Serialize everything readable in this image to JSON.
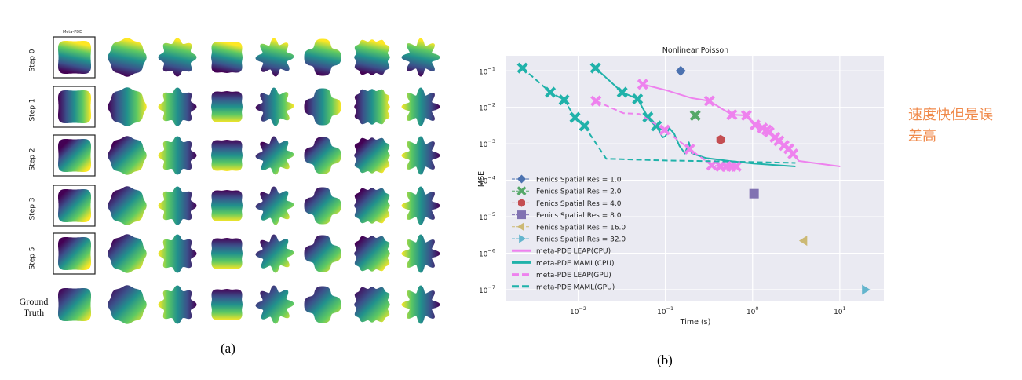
{
  "panel_a": {
    "caption": "(a)",
    "column_title": "Meta-PDE",
    "row_labels": [
      "Step 0",
      "Step 1",
      "Step 2",
      "Step 3",
      "Step 5"
    ],
    "ground_truth_label_line1": "Ground",
    "ground_truth_label_line2": "Truth",
    "colormap": "viridis",
    "shapes": [
      "rounded-square",
      "octagon-blob",
      "wavy-8",
      "four-lobe-diamond",
      "wavy-flower",
      "x-cross",
      "wavy-square",
      "star-8"
    ]
  },
  "panel_b": {
    "caption": "(b)"
  },
  "annotation": {
    "line1": "速度快但是误",
    "line2": "差高",
    "color": "#f08a4b"
  },
  "chart_data": {
    "type": "scatter",
    "title": "Nonlinear Poisson",
    "xlabel": "Time (s)",
    "ylabel": "MSE",
    "xscale": "log",
    "yscale": "log",
    "xlim": [
      0.0015,
      32
    ],
    "ylim": [
      5e-08,
      0.26
    ],
    "xticks": [
      {
        "value": 0.01,
        "base": "10",
        "exp": "−2"
      },
      {
        "value": 0.1,
        "base": "10",
        "exp": "−1"
      },
      {
        "value": 1,
        "base": "10",
        "exp": "0"
      },
      {
        "value": 10,
        "base": "10",
        "exp": "1"
      }
    ],
    "yticks": [
      {
        "value": 0.1,
        "base": "10",
        "exp": "−1"
      },
      {
        "value": 0.01,
        "base": "10",
        "exp": "−2"
      },
      {
        "value": 0.001,
        "base": "10",
        "exp": "−3"
      },
      {
        "value": 0.0001,
        "base": "10",
        "exp": "−4"
      },
      {
        "value": 1e-05,
        "base": "10",
        "exp": "−5"
      },
      {
        "value": 1e-06,
        "base": "10",
        "exp": "−6"
      },
      {
        "value": 1e-07,
        "base": "10",
        "exp": "−7"
      }
    ],
    "grid": true,
    "background": "#eaeaf2",
    "legend_position": "lower-left",
    "points": [
      {
        "name": "Fenics Spatial Res = 1.0",
        "marker": "diamond",
        "color": "#4c72b0",
        "x": 0.15,
        "y": 0.1
      },
      {
        "name": "Fenics Spatial Res = 2.0",
        "marker": "x",
        "color": "#55a868",
        "x": 0.22,
        "y": 0.006
      },
      {
        "name": "Fenics Spatial Res = 4.0",
        "marker": "hexagon",
        "color": "#c44e52",
        "x": 0.43,
        "y": 0.0013
      },
      {
        "name": "Fenics Spatial Res = 8.0",
        "marker": "square",
        "color": "#8172b2",
        "x": 1.04,
        "y": 4.3e-05
      },
      {
        "name": "Fenics Spatial Res = 16.0",
        "marker": "triangle-left",
        "color": "#ccb974",
        "x": 3.9,
        "y": 2.2e-06
      },
      {
        "name": "Fenics Spatial Res = 32.0",
        "marker": "triangle-right",
        "color": "#64b5cd",
        "x": 19.5,
        "y": 1e-07
      }
    ],
    "series": [
      {
        "name": "meta-PDE LEAP(CPU)",
        "color": "#ee82ee",
        "style": "solid",
        "line": [
          [
            0.055,
            0.043
          ],
          [
            0.1,
            0.03
          ],
          [
            0.2,
            0.018
          ],
          [
            0.32,
            0.015
          ],
          [
            0.45,
            0.009
          ],
          [
            0.58,
            0.0063
          ],
          [
            0.85,
            0.006
          ],
          [
            1.07,
            0.0033
          ],
          [
            1.3,
            0.0027
          ],
          [
            1.55,
            0.0021
          ],
          [
            1.8,
            0.0015
          ],
          [
            2.0,
            0.0012
          ],
          [
            2.3,
            0.0009
          ],
          [
            2.6,
            0.00073
          ],
          [
            2.9,
            0.00053
          ],
          [
            3.4,
            0.00034
          ],
          [
            5.0,
            0.0003
          ],
          [
            10.1,
            0.00024
          ]
        ],
        "markers": [
          [
            0.055,
            0.043
          ],
          [
            0.32,
            0.015
          ],
          [
            0.58,
            0.0063
          ],
          [
            0.85,
            0.006
          ],
          [
            1.07,
            0.0033
          ],
          [
            1.3,
            0.0027
          ],
          [
            1.45,
            0.0024
          ],
          [
            1.55,
            0.0021
          ],
          [
            1.8,
            0.0015
          ],
          [
            2.0,
            0.0012
          ],
          [
            2.3,
            0.0009
          ],
          [
            2.6,
            0.00073
          ],
          [
            2.9,
            0.00053
          ]
        ]
      },
      {
        "name": "meta-PDE MAML(CPU)",
        "color": "#20b2aa",
        "style": "solid",
        "line": [
          [
            0.0158,
            0.12
          ],
          [
            0.032,
            0.026
          ],
          [
            0.048,
            0.017
          ],
          [
            0.063,
            0.0054
          ],
          [
            0.079,
            0.0031
          ],
          [
            0.093,
            0.0015
          ],
          [
            0.1,
            0.0016
          ],
          [
            0.111,
            0.0027
          ],
          [
            0.126,
            0.0019
          ],
          [
            0.145,
            0.00088
          ],
          [
            0.168,
            0.00054
          ],
          [
            0.186,
            0.0011
          ],
          [
            0.2,
            0.00056
          ],
          [
            0.22,
            0.00051
          ],
          [
            0.29,
            0.00041
          ],
          [
            0.54,
            0.00034
          ],
          [
            1.02,
            0.00029
          ],
          [
            3.1,
            0.00024
          ]
        ],
        "markers": [
          [
            0.0158,
            0.12
          ],
          [
            0.032,
            0.026
          ],
          [
            0.048,
            0.017
          ],
          [
            0.063,
            0.0054
          ],
          [
            0.079,
            0.0031
          ]
        ]
      },
      {
        "name": "meta-PDE LEAP(GPU)",
        "color": "#ee82ee",
        "style": "dashed",
        "line": [
          [
            0.016,
            0.015
          ],
          [
            0.033,
            0.0069
          ],
          [
            0.05,
            0.0066
          ],
          [
            0.098,
            0.0024
          ],
          [
            0.19,
            0.00072
          ],
          [
            0.34,
            0.00026
          ],
          [
            0.43,
            0.00024
          ],
          [
            0.65,
            0.00024
          ]
        ],
        "markers": [
          [
            0.016,
            0.015
          ],
          [
            0.098,
            0.0024
          ],
          [
            0.19,
            0.00072
          ],
          [
            0.34,
            0.00026
          ],
          [
            0.43,
            0.00024
          ],
          [
            0.5,
            0.00024
          ],
          [
            0.57,
            0.00024
          ],
          [
            0.65,
            0.00024
          ]
        ]
      },
      {
        "name": "meta-PDE MAML(GPU)",
        "color": "#20b2aa",
        "style": "dashed",
        "line": [
          [
            0.0023,
            0.12
          ],
          [
            0.0048,
            0.026
          ],
          [
            0.0069,
            0.016
          ],
          [
            0.0092,
            0.0053
          ],
          [
            0.0118,
            0.0031
          ],
          [
            0.021,
            0.00039
          ],
          [
            0.1,
            0.00035
          ],
          [
            0.5,
            0.00033
          ],
          [
            3.1,
            0.0003
          ]
        ],
        "markers": [
          [
            0.0023,
            0.12
          ],
          [
            0.0048,
            0.026
          ],
          [
            0.0069,
            0.016
          ],
          [
            0.0092,
            0.0053
          ],
          [
            0.0118,
            0.0031
          ]
        ]
      }
    ],
    "legend": [
      "Fenics Spatial Res = 1.0",
      "Fenics Spatial Res = 2.0",
      "Fenics Spatial Res = 4.0",
      "Fenics Spatial Res = 8.0",
      "Fenics Spatial Res = 16.0",
      "Fenics Spatial Res = 32.0",
      "meta-PDE LEAP(CPU)",
      "meta-PDE MAML(CPU)",
      "meta-PDE LEAP(GPU)",
      "meta-PDE MAML(GPU)"
    ]
  }
}
